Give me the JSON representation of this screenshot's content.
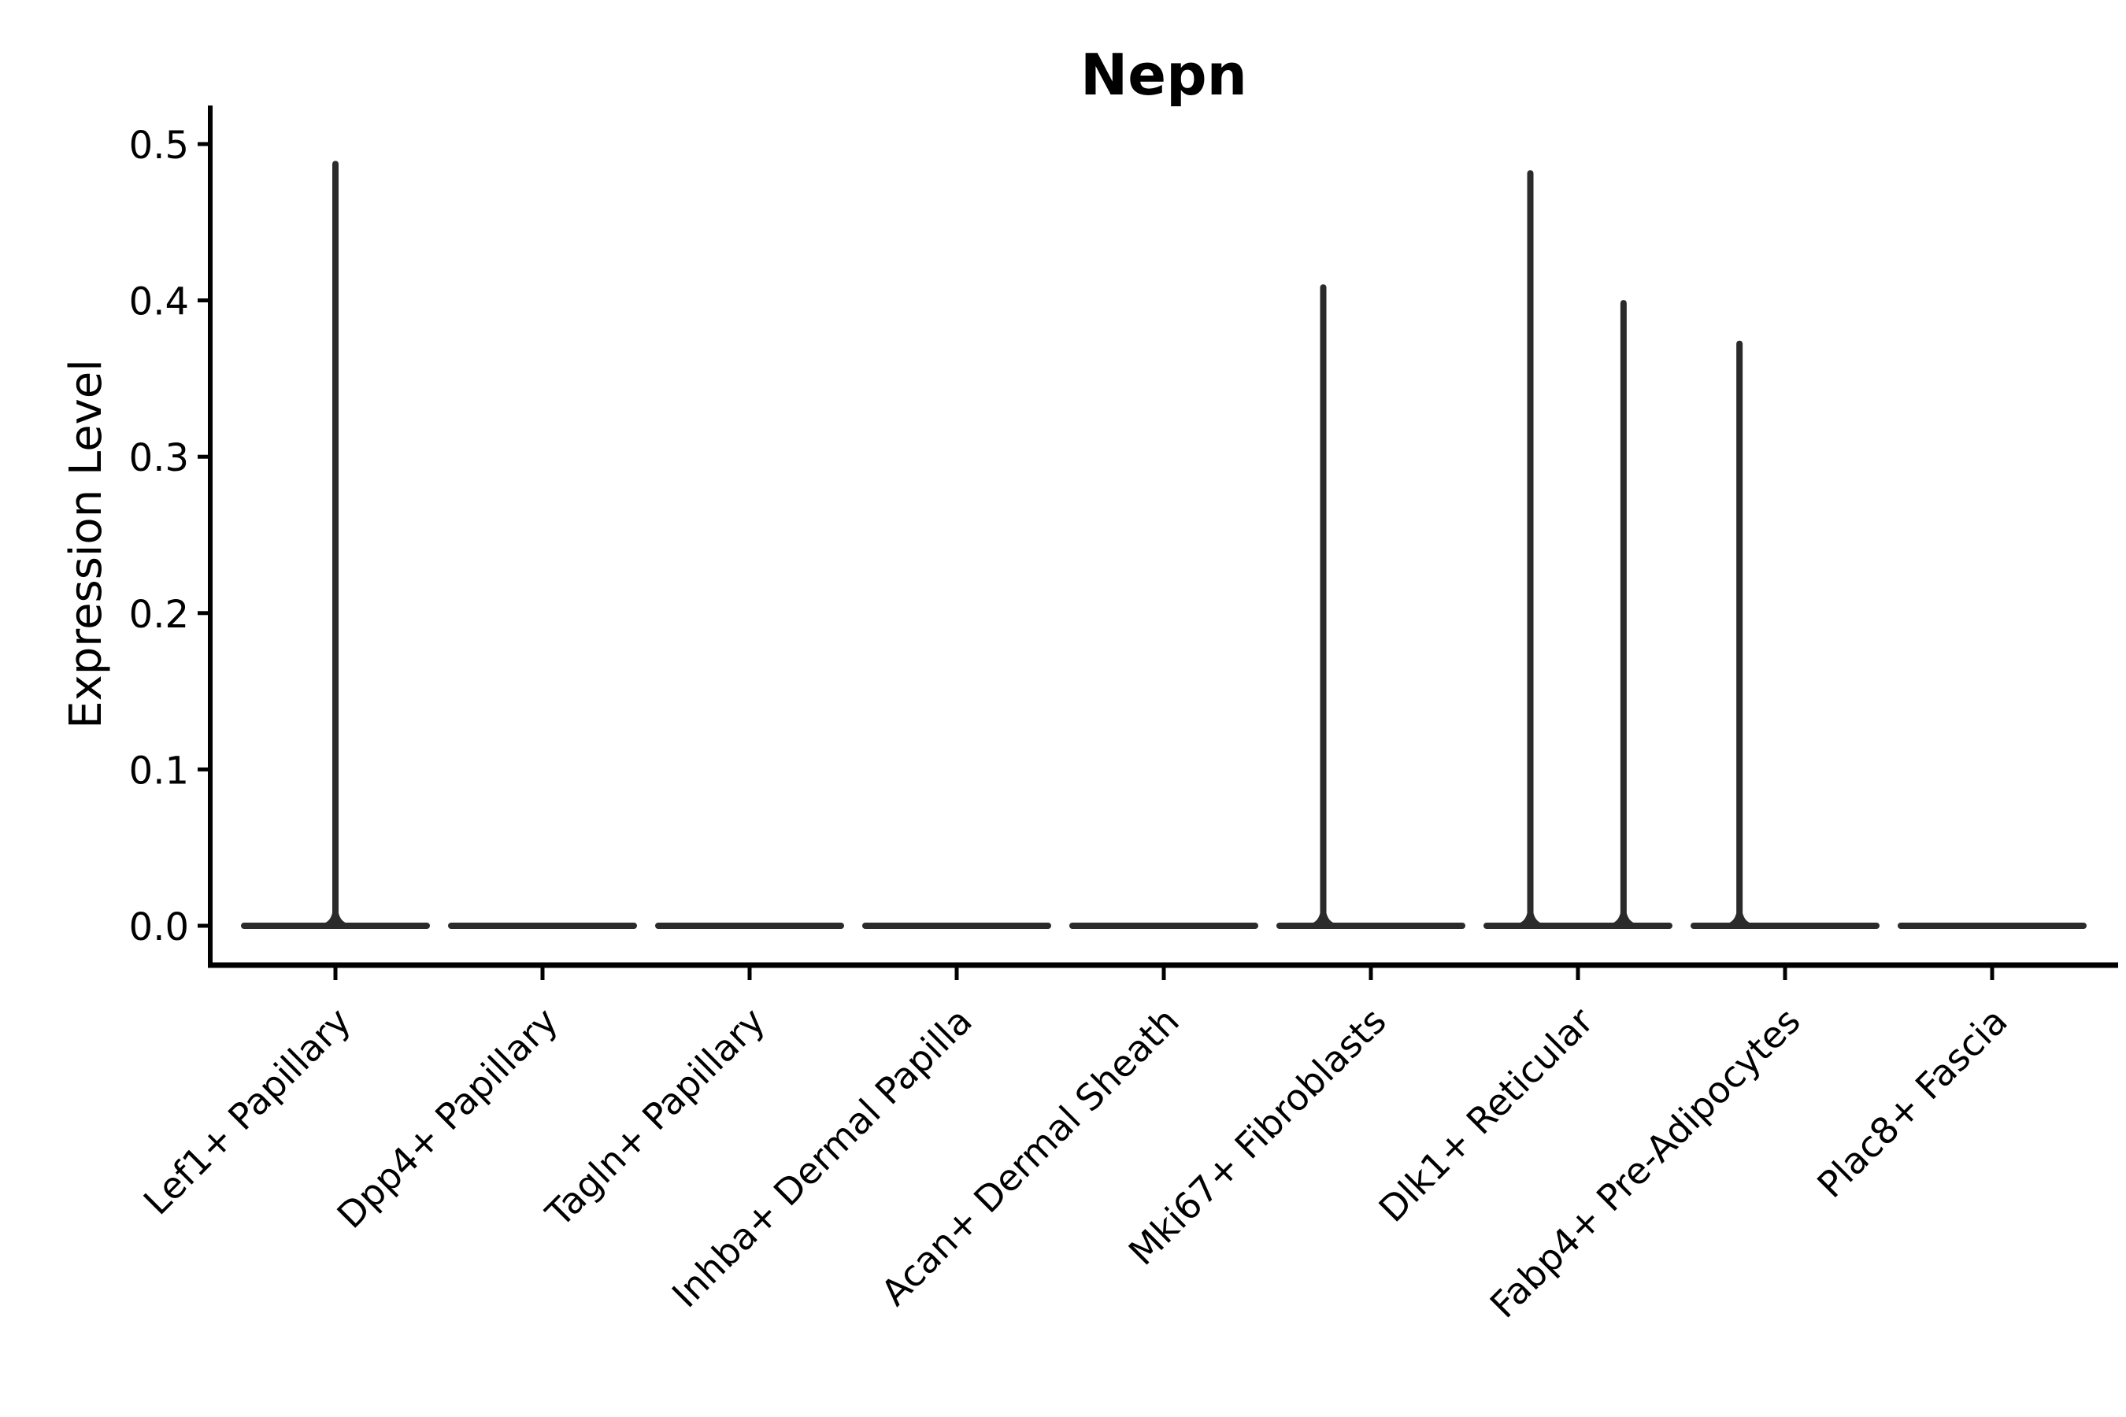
{
  "chart_data": {
    "type": "violin",
    "title": "Nepn",
    "xlabel": "",
    "ylabel": "Expression Level",
    "ylim": [
      -0.025,
      0.515
    ],
    "yticks": [
      0.0,
      0.1,
      0.2,
      0.3,
      0.4,
      0.5
    ],
    "ytick_labels": [
      "0.0",
      "0.1",
      "0.2",
      "0.3",
      "0.4",
      "0.5"
    ],
    "x_label_rotation": 45,
    "grid": false,
    "legend": "none",
    "categories": [
      "Lef1+ Papillary",
      "Dpp4+ Papillary",
      "Tagln+ Papillary",
      "Inhba+ Dermal Papilla",
      "Acan+ Dermal Sheath",
      "Mki67+ Fibroblasts",
      "Dlk1+ Reticular",
      "Fabp4+ Pre-Adipocytes",
      "Plac8+ Fascia"
    ],
    "violins": [
      {
        "category": "Lef1+ Papillary",
        "zero_body": true,
        "body_width_units": 0.9,
        "spikes": [
          {
            "x_offset_units": 0.0,
            "max_expression": 0.489
          }
        ]
      },
      {
        "category": "Dpp4+ Papillary",
        "zero_body": true,
        "body_width_units": 0.9,
        "spikes": []
      },
      {
        "category": "Tagln+ Papillary",
        "zero_body": true,
        "body_width_units": 0.9,
        "spikes": []
      },
      {
        "category": "Inhba+ Dermal Papilla",
        "zero_body": true,
        "body_width_units": 0.9,
        "spikes": []
      },
      {
        "category": "Acan+ Dermal Sheath",
        "zero_body": true,
        "body_width_units": 0.9,
        "spikes": []
      },
      {
        "category": "Mki67+ Fibroblasts",
        "zero_body": true,
        "body_width_units": 0.9,
        "spikes": [
          {
            "x_offset_units": -0.23,
            "max_expression": 0.41
          }
        ]
      },
      {
        "category": "Dlk1+ Reticular",
        "zero_body": true,
        "body_width_units": 0.9,
        "spikes": [
          {
            "x_offset_units": -0.23,
            "max_expression": 0.483
          },
          {
            "x_offset_units": 0.22,
            "max_expression": 0.4
          }
        ]
      },
      {
        "category": "Fabp4+ Pre-Adipocytes",
        "zero_body": true,
        "body_width_units": 0.9,
        "spikes": [
          {
            "x_offset_units": -0.22,
            "max_expression": 0.374
          }
        ]
      },
      {
        "category": "Plac8+ Fascia",
        "zero_body": true,
        "body_width_units": 0.9,
        "spikes": []
      }
    ],
    "colors": {
      "violin_stroke": "#2b2b2b",
      "axis": "#000000",
      "text": "#000000",
      "background": "#ffffff"
    }
  }
}
